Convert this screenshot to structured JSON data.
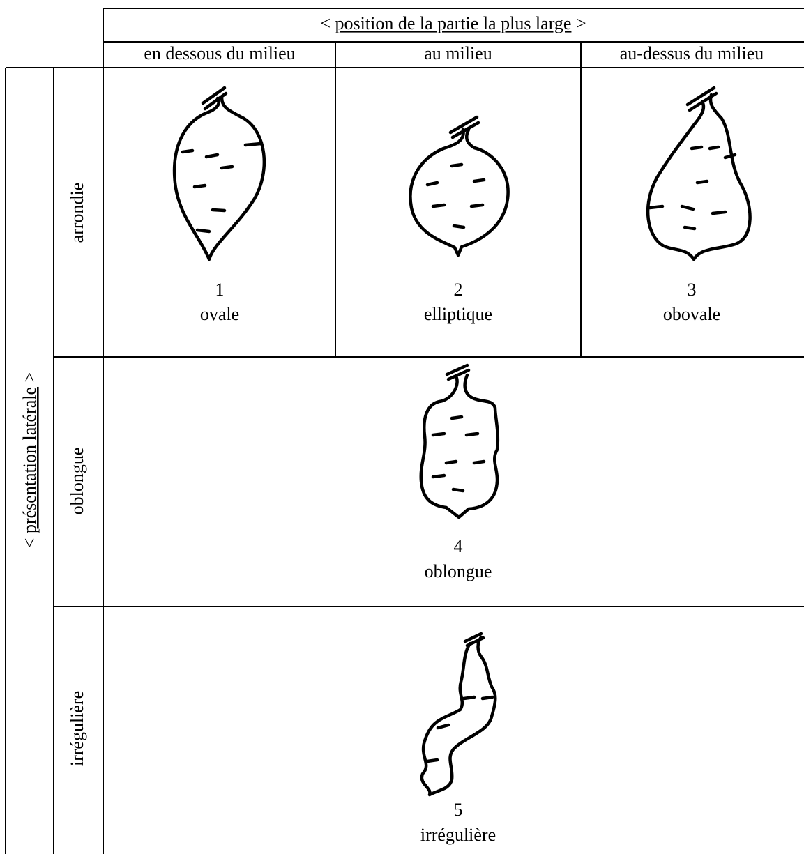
{
  "header": {
    "top": {
      "open": "<",
      "title": "position de la partie la plus large",
      "close": ">"
    },
    "columns": [
      "en dessous du milieu",
      "au milieu",
      "au-dessus du milieu"
    ]
  },
  "side": {
    "open": "<",
    "title": "présentation latérale",
    "close": ">"
  },
  "rows": [
    "arrondie",
    "oblongue",
    "irrégulière"
  ],
  "shapes": [
    {
      "number": 1,
      "label": "ovale"
    },
    {
      "number": 2,
      "label": "elliptique"
    },
    {
      "number": 3,
      "label": "obovale"
    },
    {
      "number": 4,
      "label": "oblongue"
    },
    {
      "number": 5,
      "label": "irrégulière"
    }
  ]
}
